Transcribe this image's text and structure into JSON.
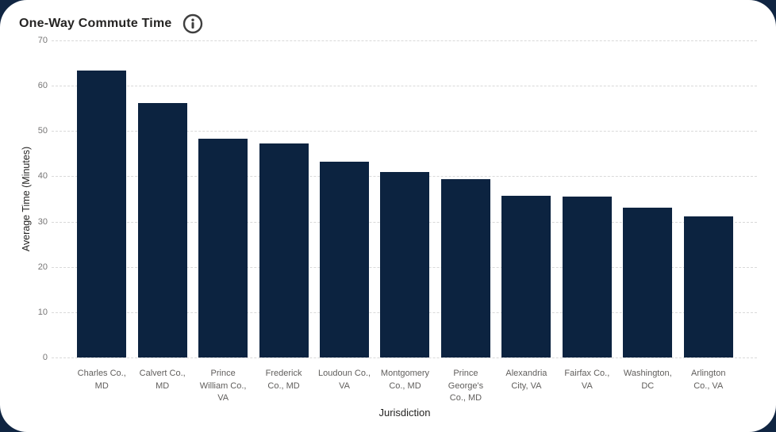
{
  "header": {
    "title": "One-Way Commute Time"
  },
  "icons": {
    "info_icon": "circle-i-information-glyph"
  },
  "colors": {
    "bar": "#0c2340",
    "page_background": "#102542",
    "card_background": "#ffffff",
    "gridline": "#d9d9d9",
    "tick_text": "#777676",
    "category_text": "#605e5c",
    "title_text": "#252423",
    "info_icon": "#3f3f3f"
  },
  "chart_data": {
    "type": "bar",
    "title": "One-Way Commute Time",
    "xlabel": "Jurisdiction",
    "ylabel": "Average Time (Minutes)",
    "categories": [
      "Charles Co., MD",
      "Calvert Co., MD",
      "Prince William Co., VA",
      "Frederick Co., MD",
      "Loudoun Co., VA",
      "Montgomery Co., MD",
      "Prince George's Co., MD",
      "Alexandria City, VA",
      "Fairfax Co., VA",
      "Washington, DC",
      "Arlington Co., VA"
    ],
    "values": [
      63.4,
      56.1,
      48.3,
      47.3,
      43.3,
      41.0,
      39.4,
      35.7,
      35.5,
      33.0,
      31.1
    ],
    "ylim": [
      0,
      70
    ],
    "ytick_step": 10,
    "yticks": [
      0,
      10,
      20,
      30,
      40,
      50,
      60,
      70
    ],
    "grid": "horizontal-dashed",
    "legend": "none",
    "bar_color": "#0c2340"
  }
}
